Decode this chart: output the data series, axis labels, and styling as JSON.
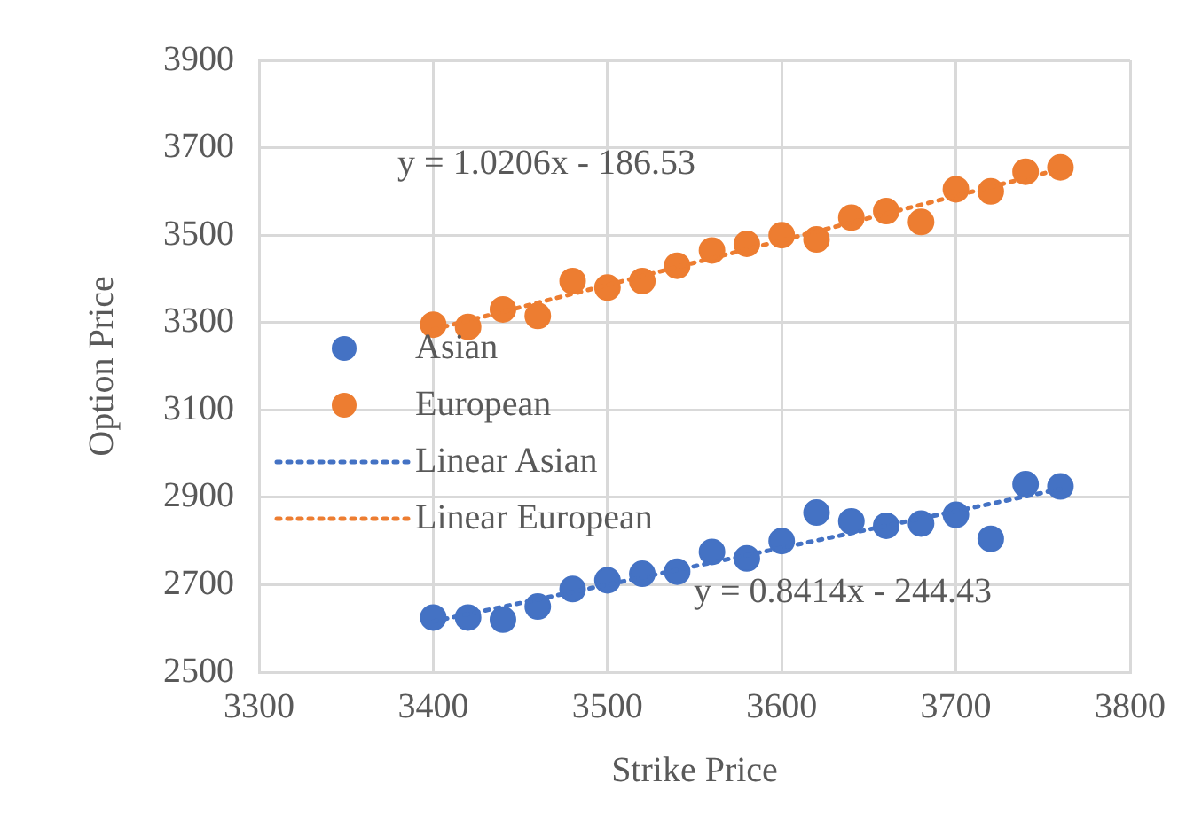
{
  "chart_data": {
    "type": "scatter",
    "xlabel": "Strike Price",
    "ylabel": "Option Price",
    "xlim": [
      3300,
      3800
    ],
    "xticks": [
      3300,
      3400,
      3500,
      3600,
      3700,
      3800
    ],
    "ylim": [
      2500,
      3900
    ],
    "yticks": [
      2500,
      2700,
      2900,
      3100,
      3300,
      3500,
      3700,
      3900
    ],
    "grid": true,
    "legend": "left",
    "marker": "circle",
    "x": [
      3400,
      3420,
      3440,
      3460,
      3480,
      3500,
      3520,
      3540,
      3560,
      3580,
      3600,
      3620,
      3640,
      3660,
      3680,
      3700,
      3720,
      3740,
      3760
    ],
    "series": [
      {
        "name": "Asian",
        "color": "#4472c4",
        "values": [
          2625,
          2625,
          2620,
          2650,
          2690,
          2710,
          2725,
          2730,
          2775,
          2760,
          2800,
          2865,
          2845,
          2835,
          2840,
          2860,
          2805,
          2930,
          2925
        ]
      },
      {
        "name": "European",
        "color": "#ed7d31",
        "values": [
          3295,
          3290,
          3330,
          3315,
          3395,
          3380,
          3395,
          3430,
          3465,
          3480,
          3500,
          3490,
          3540,
          3555,
          3530,
          3605,
          3600,
          3645,
          3655
        ]
      },
      {
        "name": "Linear Asian",
        "type": "line",
        "color": "#4472c4",
        "line_style": "dotted",
        "marker": "none",
        "values": [
          2616,
          null,
          null,
          null,
          null,
          null,
          null,
          null,
          null,
          null,
          null,
          null,
          null,
          null,
          null,
          null,
          null,
          null,
          2919
        ]
      },
      {
        "name": "Linear European",
        "type": "line",
        "color": "#ed7d31",
        "line_style": "dotted",
        "marker": "none",
        "values": [
          3284,
          null,
          null,
          null,
          null,
          null,
          null,
          null,
          null,
          null,
          null,
          null,
          null,
          null,
          null,
          null,
          null,
          null,
          3651
        ]
      }
    ],
    "annotations": [
      "y = 1.0206x - 186.53",
      "y = 0.8414x - 244.43"
    ]
  }
}
